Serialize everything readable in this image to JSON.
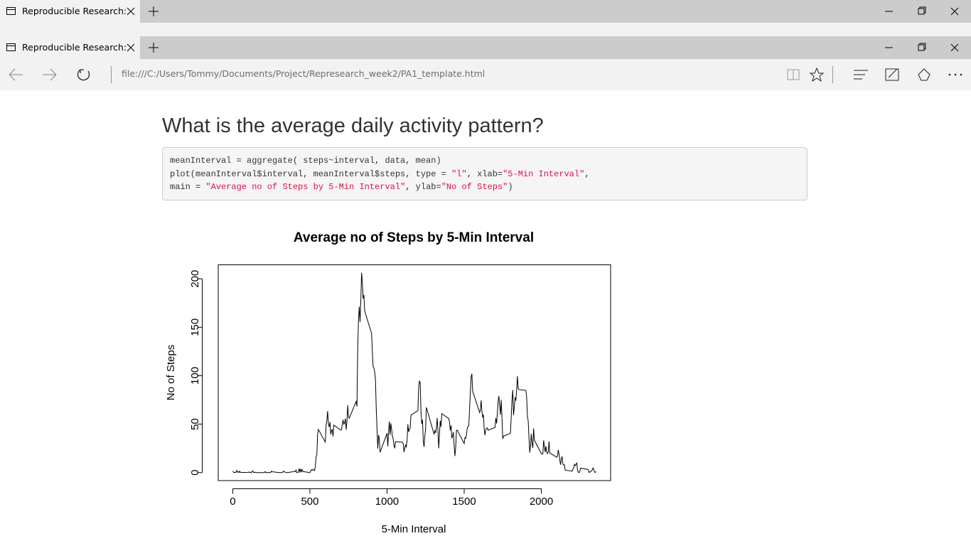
{
  "browser": {
    "tabs": [
      "Reproducible Research:",
      "Reproducible Research:"
    ],
    "url": "file:///C:/Users/Tommy/Documents/Project/Represearch_week2/PA1_template.html"
  },
  "heading": "What is the average daily activity pattern?",
  "code": {
    "lines": [
      [
        "meanInterval = aggregate( steps~interval, data, mean)"
      ],
      [
        "plot(meanInterval$interval, meanInterval$steps, type = ",
        "\"l\"",
        ", xlab=",
        "\"5-Min Interval\"",
        ","
      ],
      [
        "main = ",
        "\"Average no of Steps by 5-Min Interval\"",
        ", ylab=",
        "\"No of Steps\"",
        ")"
      ]
    ]
  },
  "chart_data": {
    "type": "line",
    "title": "Average no of Steps by 5-Min Interval",
    "x_label": "5-Min Interval",
    "y_label": "No of Steps",
    "color": "#000000",
    "xlim": [
      -94.2,
      2449.2
    ],
    "ylim": [
      -8.25,
      214.42
    ],
    "xticks": [
      0,
      500,
      1000,
      1500,
      2000
    ],
    "yticks": [
      0,
      50,
      100,
      150,
      200
    ],
    "x": [
      0,
      5,
      10,
      15,
      20,
      25,
      30,
      35,
      40,
      45,
      50,
      55,
      100,
      105,
      110,
      115,
      120,
      125,
      130,
      135,
      140,
      145,
      150,
      155,
      200,
      205,
      210,
      215,
      220,
      225,
      230,
      235,
      240,
      245,
      250,
      255,
      300,
      305,
      310,
      315,
      320,
      325,
      330,
      335,
      340,
      345,
      350,
      355,
      400,
      405,
      410,
      415,
      420,
      425,
      430,
      435,
      440,
      445,
      450,
      455,
      500,
      505,
      510,
      515,
      520,
      525,
      530,
      535,
      540,
      545,
      550,
      555,
      600,
      605,
      610,
      615,
      620,
      625,
      630,
      635,
      640,
      645,
      650,
      655,
      700,
      705,
      710,
      715,
      720,
      725,
      730,
      735,
      740,
      745,
      750,
      755,
      800,
      805,
      810,
      815,
      820,
      825,
      830,
      835,
      840,
      845,
      850,
      855,
      900,
      905,
      910,
      915,
      920,
      925,
      930,
      935,
      940,
      945,
      950,
      955,
      1000,
      1005,
      1010,
      1015,
      1020,
      1025,
      1030,
      1035,
      1040,
      1045,
      1050,
      1055,
      1100,
      1105,
      1110,
      1115,
      1120,
      1125,
      1130,
      1135,
      1140,
      1145,
      1150,
      1155,
      1200,
      1205,
      1210,
      1215,
      1220,
      1225,
      1230,
      1235,
      1240,
      1245,
      1250,
      1255,
      1300,
      1305,
      1310,
      1315,
      1320,
      1325,
      1330,
      1335,
      1340,
      1345,
      1350,
      1355,
      1400,
      1405,
      1410,
      1415,
      1420,
      1425,
      1430,
      1435,
      1440,
      1445,
      1450,
      1455,
      1500,
      1505,
      1510,
      1515,
      1520,
      1525,
      1530,
      1535,
      1540,
      1545,
      1550,
      1555,
      1600,
      1605,
      1610,
      1615,
      1620,
      1625,
      1630,
      1635,
      1640,
      1645,
      1650,
      1655,
      1700,
      1705,
      1710,
      1715,
      1720,
      1725,
      1730,
      1735,
      1740,
      1745,
      1750,
      1755,
      1800,
      1805,
      1810,
      1815,
      1820,
      1825,
      1830,
      1835,
      1840,
      1845,
      1850,
      1855,
      1900,
      1905,
      1910,
      1915,
      1920,
      1925,
      1930,
      1935,
      1940,
      1945,
      1950,
      1955,
      2000,
      2005,
      2010,
      2015,
      2020,
      2025,
      2030,
      2035,
      2040,
      2045,
      2050,
      2055,
      2100,
      2105,
      2110,
      2115,
      2120,
      2125,
      2130,
      2135,
      2140,
      2145,
      2150,
      2155,
      2200,
      2205,
      2210,
      2215,
      2220,
      2225,
      2230,
      2235,
      2240,
      2245,
      2250,
      2255,
      2300,
      2305,
      2310,
      2315,
      2320,
      2325,
      2330,
      2335,
      2340,
      2345,
      2350,
      2355
    ],
    "values": [
      1.7,
      0.3,
      0.1,
      0.2,
      0.1,
      2.1,
      0.5,
      0.9,
      0,
      1.5,
      0.3,
      0.1,
      0.3,
      0.7,
      0.2,
      0.3,
      0,
      1.1,
      1.8,
      0.2,
      0.2,
      0.4,
      0.3,
      0,
      0,
      0,
      1.1,
      0,
      0,
      0.1,
      0,
      0.2,
      0,
      0,
      1.5,
      0.9,
      0,
      0,
      0,
      0,
      0.2,
      0.6,
      1.6,
      0.6,
      0.5,
      0.1,
      0,
      0,
      1.2,
      0.9,
      2.6,
      0,
      0.3,
      0.4,
      4.1,
      0.7,
      3.5,
      0.8,
      3.1,
      1.1,
      0,
      1.6,
      3,
      2.2,
      3.3,
      3,
      2.1,
      6,
      16,
      18.3,
      39.5,
      44.5,
      31.5,
      49.3,
      53.8,
      63.5,
      50,
      47.1,
      52.2,
      39.3,
      44,
      44.2,
      37.4,
      49,
      43.8,
      44.4,
      50.5,
      54.5,
      49.9,
      51,
      55.7,
      44.3,
      52.3,
      69.5,
      57.8,
      56.2,
      73.4,
      68.2,
      129.4,
      157.5,
      171.2,
      155.4,
      177.3,
      206.2,
      195.9,
      179.6,
      183.4,
      167,
      143.5,
      124,
      109,
      108,
      103.7,
      95.9,
      66.2,
      45.2,
      24.8,
      38.8,
      35,
      21,
      40.6,
      27,
      42.4,
      52.7,
      38.9,
      50.8,
      44.3,
      37.4,
      34.7,
      28.3,
      25.1,
      31.9,
      31.4,
      29.7,
      21.3,
      25.5,
      28.4,
      26.5,
      33.4,
      50,
      42,
      44.6,
      46,
      59.2,
      63.9,
      87.7,
      94.8,
      92.8,
      63.4,
      50.2,
      54.5,
      32.4,
      26.5,
      37.7,
      45.1,
      67.3,
      42.3,
      39.9,
      43.3,
      40.98,
      46.2,
      56.4,
      42.8,
      25.1,
      40,
      53.5,
      47.3,
      60.8,
      55.8,
      51.9,
      43.6,
      48.7,
      35.5,
      37.5,
      41.8,
      27.5,
      17.1,
      26.1,
      43.6,
      43.8,
      30,
      36.1,
      35.5,
      38.8,
      45.96,
      47.75,
      48.1,
      65.3,
      82.9,
      98.7,
      102.1,
      83.96,
      62.1,
      64.1,
      74.5,
      63.2,
      56.9,
      59.8,
      43.9,
      38.6,
      44.7,
      45.5,
      46.2,
      43.7,
      46.6,
      56.3,
      50.7,
      61.2,
      73.4,
      79.1,
      68.9,
      59.7,
      75.1,
      56.5,
      34.8,
      37.5,
      40.7,
      58,
      74.7,
      85.3,
      59.3,
      67.8,
      77.7,
      74.2,
      85.3,
      99.45,
      86.6,
      85.6,
      84.9,
      77.8,
      58,
      53.4,
      36.3,
      20.7,
      27.4,
      40,
      30.2,
      25.5,
      45.7,
      33.5,
      19.6,
      19,
      19.3,
      33.3,
      26.8,
      21.2,
      27.3,
      21.3,
      19.5,
      21.3,
      32.3,
      20.2,
      15.9,
      17.2,
      23.5,
      19.2,
      12.5,
      8.1,
      14.7,
      16.3,
      8.7,
      7.8,
      8.1,
      2.6,
      1.5,
      3.7,
      4.8,
      8.5,
      7.1,
      8.7,
      9.8,
      2.2,
      0.3,
      0.1,
      1.6,
      4.6,
      3.3,
      2.8,
      0,
      0.8,
      0.96,
      1.6,
      2.6,
      4.7,
      3.3,
      0.6,
      0.2,
      1.1
    ]
  }
}
